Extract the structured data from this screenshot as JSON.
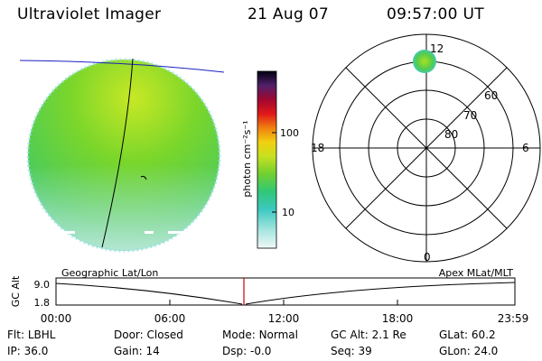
{
  "header": {
    "instrument": "Ultraviolet Imager",
    "date": "21 Aug 07",
    "time": "09:57:00 UT"
  },
  "colorbar": {
    "unit_label": "photon cm⁻²s⁻¹",
    "ticks": [
      "100",
      "10"
    ]
  },
  "polar_plot": {
    "mlt_labels": {
      "top": "12",
      "right": "6",
      "bottom": "0",
      "left": "18"
    },
    "lat_labels": [
      "60",
      "70",
      "80"
    ]
  },
  "timeline": {
    "y_axis_label": "GC Alt",
    "y_ticks": [
      "9.0",
      "1.8"
    ],
    "left_caption": "Geographic Lat/Lon",
    "right_caption": "Apex MLat/MLT",
    "x_ticks": [
      "00:00",
      "06:00",
      "12:00",
      "18:00",
      "23:59"
    ]
  },
  "status": [
    {
      "label": "Flt:",
      "value": "LBHL"
    },
    {
      "label": "Door:",
      "value": "Closed"
    },
    {
      "label": "Mode:",
      "value": "Normal"
    },
    {
      "label": "GC Alt:",
      "value": "2.1 Re"
    },
    {
      "label": "GLat:",
      "value": "60.2"
    },
    {
      "label": "IP:",
      "value": "36.0"
    },
    {
      "label": "Gain:",
      "value": "14"
    },
    {
      "label": "Dsp:",
      "value": "-0.0"
    },
    {
      "label": "Seq:",
      "value": "39"
    },
    {
      "label": "GLon:",
      "value": "24.0"
    }
  ]
}
